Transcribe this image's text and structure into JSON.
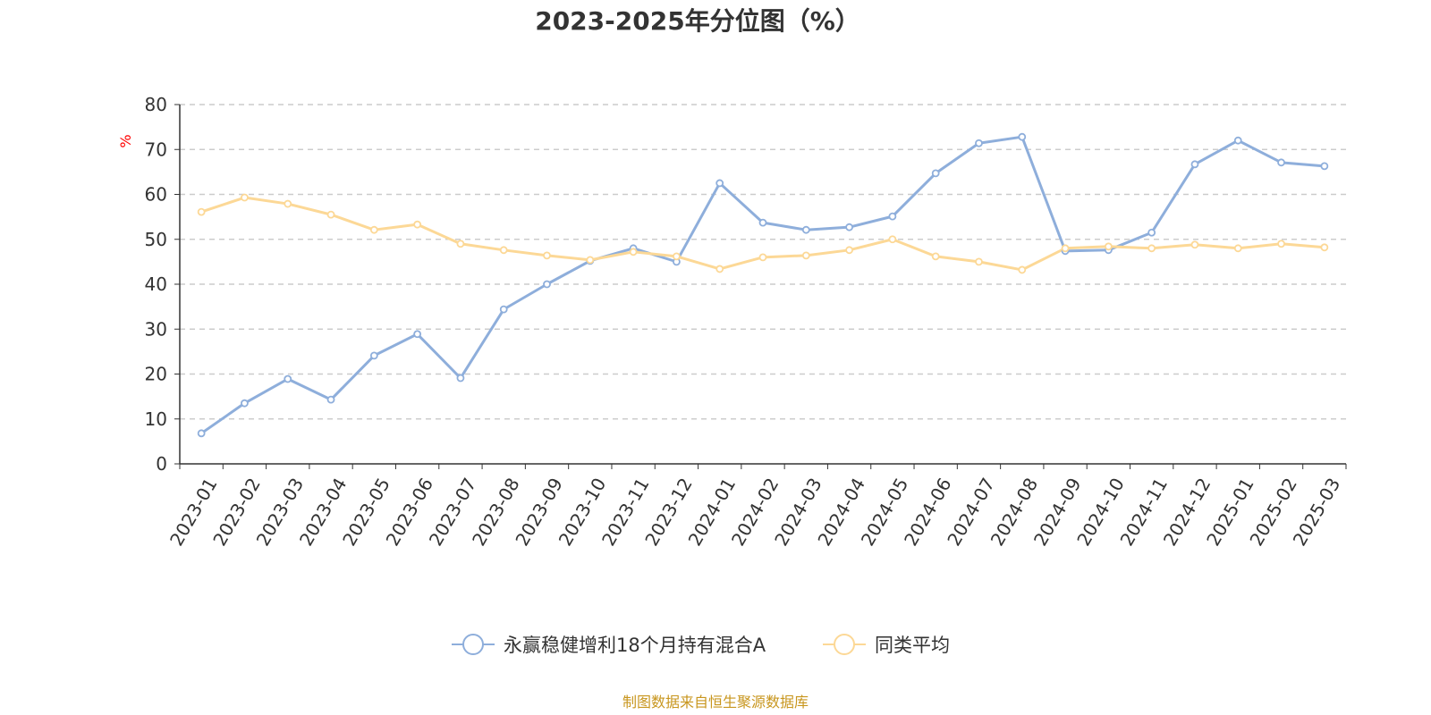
{
  "chart_data": {
    "type": "line",
    "title": "2023-2025年分位图（%）",
    "xlabel": "",
    "ylabel": "%",
    "ylim": [
      0,
      80
    ],
    "yticks": [
      0,
      10,
      20,
      30,
      40,
      50,
      60,
      70,
      80
    ],
    "grid": true,
    "legend_position": "bottom",
    "categories": [
      "2023-01",
      "2023-02",
      "2023-03",
      "2023-04",
      "2023-05",
      "2023-06",
      "2023-07",
      "2023-08",
      "2023-09",
      "2023-10",
      "2023-11",
      "2023-12",
      "2024-01",
      "2024-02",
      "2024-03",
      "2024-04",
      "2024-05",
      "2024-06",
      "2024-07",
      "2024-08",
      "2024-09",
      "2024-10",
      "2024-11",
      "2024-12",
      "2025-01",
      "2025-02",
      "2025-03"
    ],
    "series": [
      {
        "name": "永赢稳健增利18个月持有混合A",
        "color": "#8eaedb",
        "values": [
          6.8,
          13.5,
          18.9,
          14.3,
          24.1,
          28.9,
          19.1,
          34.4,
          40.0,
          45.2,
          48.0,
          45.0,
          62.5,
          53.7,
          52.1,
          52.7,
          55.1,
          64.7,
          71.4,
          72.8,
          47.4,
          47.6,
          51.5,
          66.7,
          72.0,
          67.1,
          66.3
        ]
      },
      {
        "name": "同类平均",
        "color": "#fcd896",
        "values": [
          56.1,
          59.3,
          57.9,
          55.5,
          52.1,
          53.3,
          49.0,
          47.6,
          46.4,
          45.4,
          47.2,
          46.2,
          43.4,
          46.0,
          46.4,
          47.6,
          50.0,
          46.2,
          45.0,
          43.2,
          48.0,
          48.4,
          48.0,
          48.8,
          48.0,
          49.0,
          48.2
        ]
      }
    ]
  },
  "footer": {
    "source": "制图数据来自恒生聚源数据库",
    "color": "#c8961e"
  }
}
